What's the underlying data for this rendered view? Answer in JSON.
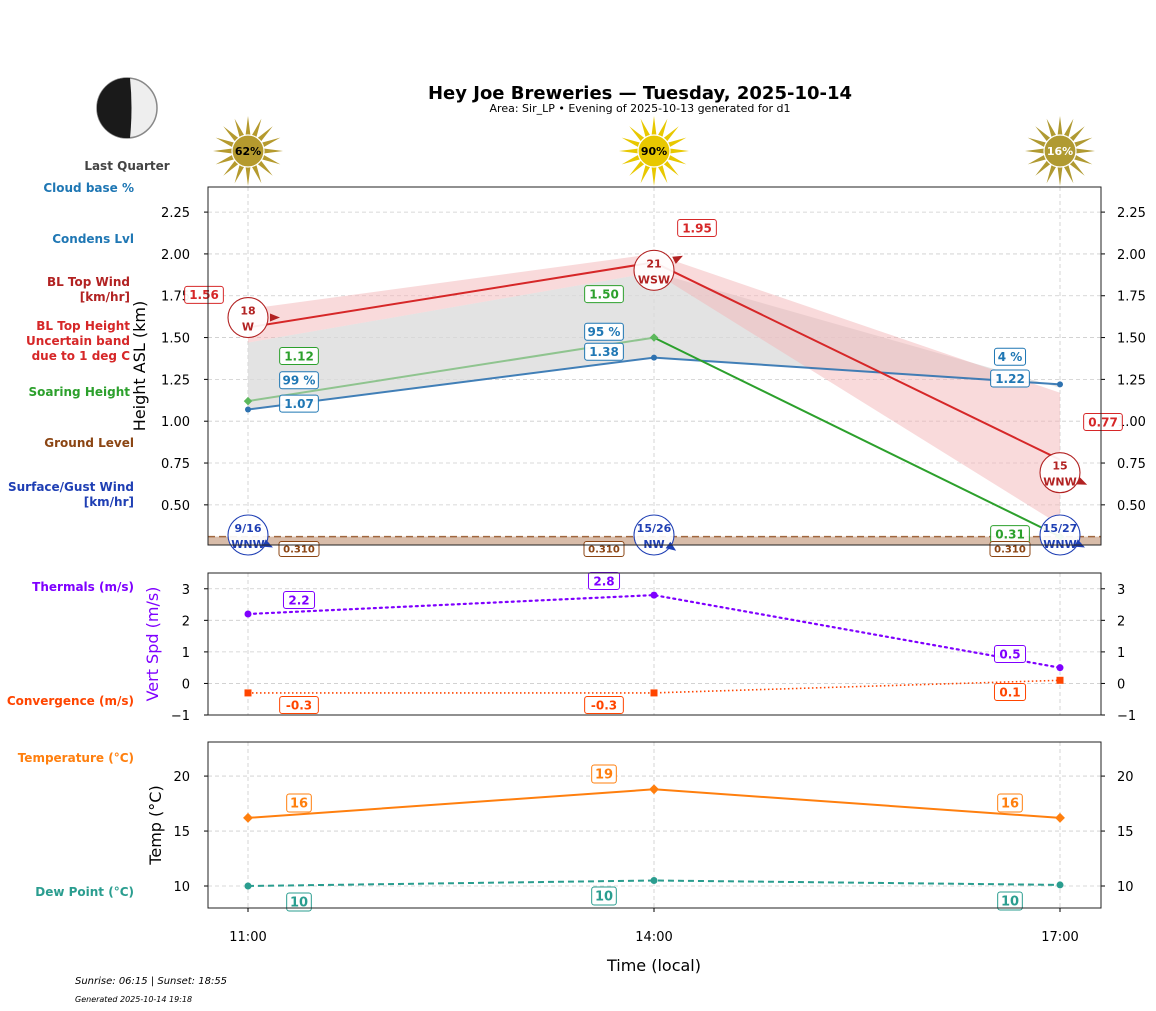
{
  "header": {
    "title": "Hey Joe Breweries — Tuesday, 2025-10-14",
    "subtitle": "Area: Sir_LP • Evening of 2025-10-13 generated for d1"
  },
  "moon": {
    "phase": "Last Quarter",
    "icon": "moon-last-quarter-icon"
  },
  "sun_icons": [
    {
      "time": "11:00",
      "label": "62%",
      "color": "#b59a2e"
    },
    {
      "time": "14:00",
      "label": "90%",
      "color": "#e8c800"
    },
    {
      "time": "17:00",
      "label": "16%",
      "color": "#b09a32"
    }
  ],
  "left_labels": {
    "cloud_base": "Cloud base %",
    "condens": "Condens Lvl",
    "bl_wind_1": "BL Top Wind",
    "bl_wind_2": "[km/hr]",
    "bl_height_1": "BL Top Height",
    "bl_height_2": "Uncertain band",
    "bl_height_3": "due to 1 deg C",
    "soaring": "Soaring Height",
    "ground": "Ground Level",
    "surface_1": "Surface/Gust Wind",
    "surface_2": "[km/hr]",
    "thermals": "Thermals (m/s)",
    "convergence": "Convergence (m/s)",
    "temperature": "Temperature (°C)",
    "dewpoint": "Dew Point (°C)"
  },
  "colors": {
    "cloud": "#1f77b4",
    "bl": "#d62728",
    "soaring": "#2ca02c",
    "ground": "#8b4513",
    "surface": "#1f3fb4",
    "thermals": "#7f00ff",
    "convergence": "#ff4500",
    "temperature": "#ff7f0e",
    "dewpoint": "#2a9d8f"
  },
  "footer": {
    "sun": "Sunrise: 06:15 | Sunset: 18:55",
    "generated": "Generated 2025-10-14 19:18"
  },
  "chart_data": [
    {
      "type": "line",
      "name": "height-panel",
      "ylabel": "Height ASL (km)",
      "x": [
        "11:00",
        "14:00",
        "17:00"
      ],
      "ylim": [
        0.26,
        2.4
      ],
      "yticks": [
        "0.50",
        "0.75",
        "1.00",
        "1.25",
        "1.50",
        "1.75",
        "2.00",
        "2.25"
      ],
      "ytick_values": [
        0.5,
        0.75,
        1.0,
        1.25,
        1.5,
        1.75,
        2.0,
        2.25
      ],
      "grid": true,
      "series": [
        {
          "name": "BL Top Height",
          "values": [
            1.56,
            1.95,
            0.77
          ],
          "labels": [
            "1.56",
            "1.95",
            "0.77"
          ]
        },
        {
          "name": "BL Top Uncertain band upper",
          "values": [
            1.67,
            2.0,
            1.17
          ]
        },
        {
          "name": "BL Top Uncertain band lower",
          "values": [
            1.47,
            1.89,
            0.38
          ]
        },
        {
          "name": "Soaring Height",
          "values": [
            1.12,
            1.5,
            0.31
          ],
          "labels": [
            "1.12",
            "1.50",
            "0.31"
          ]
        },
        {
          "name": "Condens Lvl",
          "values": [
            1.07,
            1.38,
            1.22
          ],
          "labels": [
            "1.07",
            "1.38",
            "1.22"
          ]
        },
        {
          "name": "Cloud base %",
          "values": [
            99,
            95,
            4
          ],
          "labels": [
            "99 %",
            "95 %",
            "4 %"
          ]
        },
        {
          "name": "Ground Level",
          "values": [
            0.31,
            0.31,
            0.31
          ],
          "labels": [
            "0.310",
            "0.310",
            "0.310"
          ]
        }
      ],
      "bl_wind": [
        {
          "speed": "18",
          "dir": "W"
        },
        {
          "speed": "21",
          "dir": "WSW"
        },
        {
          "speed": "15",
          "dir": "WNW"
        }
      ],
      "surface_wind": [
        {
          "speed": "9/16",
          "dir": "WNW"
        },
        {
          "speed": "15/26",
          "dir": "NW"
        },
        {
          "speed": "15/27",
          "dir": "WNW"
        }
      ]
    },
    {
      "type": "line",
      "name": "vert-speed-panel",
      "ylabel": "Vert Spd (m/s)",
      "x": [
        "11:00",
        "14:00",
        "17:00"
      ],
      "ylim": [
        -1,
        3.5
      ],
      "yticks": [
        "−1",
        "0",
        "1",
        "2",
        "3"
      ],
      "ytick_values": [
        -1,
        0,
        1,
        2,
        3
      ],
      "grid": true,
      "series": [
        {
          "name": "Thermals (m/s)",
          "values": [
            2.2,
            2.8,
            0.5
          ],
          "labels": [
            "2.2",
            "2.8",
            "0.5"
          ]
        },
        {
          "name": "Convergence (m/s)",
          "values": [
            -0.3,
            -0.3,
            0.1
          ],
          "labels": [
            "-0.3",
            "-0.3",
            "0.1"
          ]
        }
      ]
    },
    {
      "type": "line",
      "name": "temperature-panel",
      "ylabel": "Temp (°C)",
      "xlabel": "Time (local)",
      "x": [
        "11:00",
        "14:00",
        "17:00"
      ],
      "ylim": [
        8,
        23.1
      ],
      "yticks": [
        "10",
        "15",
        "20"
      ],
      "ytick_values": [
        10,
        15,
        20
      ],
      "grid": true,
      "series": [
        {
          "name": "Temperature (°C)",
          "values": [
            16.2,
            18.8,
            16.2
          ],
          "labels": [
            "16",
            "19",
            "16"
          ]
        },
        {
          "name": "Dew Point (°C)",
          "values": [
            10.0,
            10.5,
            10.1
          ],
          "labels": [
            "10",
            "10",
            "10"
          ]
        }
      ]
    }
  ]
}
